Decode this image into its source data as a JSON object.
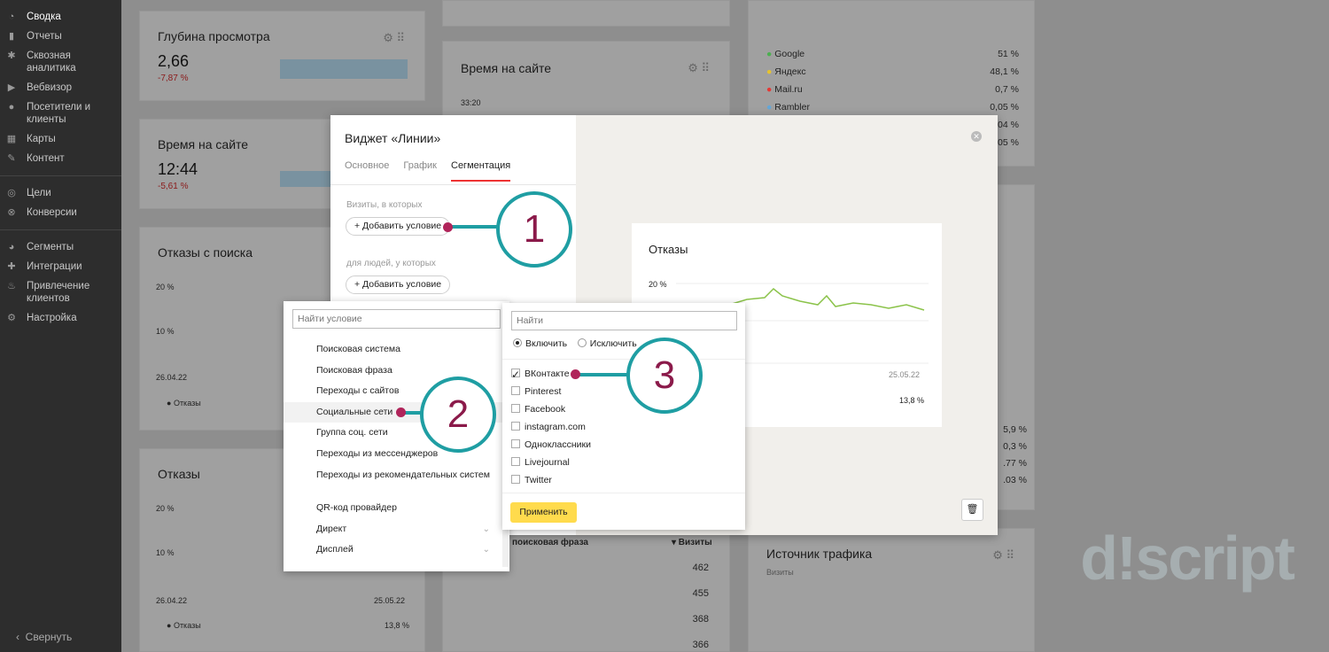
{
  "sidebar": {
    "items": [
      {
        "label": "Сводка",
        "icon": "dashboard-icon"
      },
      {
        "label": "Отчеты",
        "icon": "bar-chart-icon"
      },
      {
        "label": "Сквозная аналитика",
        "icon": "snowflake-icon"
      },
      {
        "label": "Вебвизор",
        "icon": "play-icon"
      },
      {
        "label": "Посетители и клиенты",
        "icon": "user-icon"
      },
      {
        "label": "Карты",
        "icon": "map-icon"
      },
      {
        "label": "Контент",
        "icon": "pencil-icon"
      },
      {
        "label": "Цели",
        "icon": "target-icon"
      },
      {
        "label": "Конверсии",
        "icon": "conversion-icon"
      },
      {
        "label": "Сегменты",
        "icon": "pie-icon"
      },
      {
        "label": "Интеграции",
        "icon": "puzzle-icon"
      },
      {
        "label": "Привлечение клиентов",
        "icon": "flame-icon"
      },
      {
        "label": "Настройка",
        "icon": "gear-icon"
      }
    ],
    "collapse_label": "Свернуть"
  },
  "cards": {
    "depth": {
      "title": "Глубина просмотра",
      "value": "2,66",
      "delta": "-7,87 %"
    },
    "time": {
      "title": "Время на сайте",
      "value": "12:44",
      "delta": "-5,61 %"
    },
    "bounces_search": {
      "title": "Отказы с поиска",
      "y20": "20 %",
      "y10": "10 %",
      "date_start": "26.04.22",
      "legend": "Отказы"
    },
    "bounces": {
      "title": "Отказы",
      "y20": "20 %",
      "y10": "10 %",
      "date_start": "26.04.22",
      "date_end": "25.05.22",
      "legend": "Отказы",
      "total": "13,8 %"
    },
    "time_mid": {
      "title": "Время на сайте",
      "y": "33:20"
    },
    "sources": [
      {
        "name": "Google",
        "value": "51 %",
        "color": "#4caf50"
      },
      {
        "name": "Яндекс",
        "value": "48,1 %",
        "color": "#e6c32e"
      },
      {
        "name": "Mail.ru",
        "value": "0,7 %",
        "color": "#e53935"
      },
      {
        "name": "Rambler",
        "value": "0,05 %",
        "color": "#64a7d8"
      }
    ],
    "sources_partial": [
      ".04 %",
      ".05 %"
    ],
    "side_values": [
      "5,9 %",
      "0,3 %",
      ".77 %",
      ".03 %"
    ],
    "traffic": {
      "title": "Источник трафика",
      "subtitle": "Визиты"
    },
    "table": {
      "col1": "поисковая фраза",
      "col2": "▾ Визиты",
      "rows": [
        "462",
        "455",
        "368",
        "366"
      ]
    }
  },
  "modal": {
    "title": "Виджет «Линии»",
    "tabs": [
      "Основное",
      "График",
      "Сегментация"
    ],
    "visits_label": "Визиты, в которых",
    "people_label": "для людей, у которых",
    "add_condition": "+ Добавить условие",
    "preview": {
      "title": "Отказы",
      "y20": "20 %",
      "date_end": "25.05.22",
      "total": "13,8 %"
    }
  },
  "conditions": {
    "placeholder": "Найти условие",
    "items": [
      {
        "label": "Поисковая система"
      },
      {
        "label": "Поисковая фраза"
      },
      {
        "label": "Переходы с сайтов"
      },
      {
        "label": "Социальные сети",
        "selected": true
      },
      {
        "label": "Группа соц. сети"
      },
      {
        "label": "Переходы из мессенджеров"
      },
      {
        "label": "Переходы из рекомендательных систем",
        "two": true
      },
      {
        "label": "QR-код провайдер"
      },
      {
        "label": "Директ",
        "chev": true
      },
      {
        "label": "Дисплей",
        "chev": true
      }
    ]
  },
  "social": {
    "placeholder": "Найти",
    "include": "Включить",
    "exclude": "Исключить",
    "items": [
      {
        "label": "ВКонтакте",
        "checked": true
      },
      {
        "label": "Pinterest",
        "checked": false
      },
      {
        "label": "Facebook",
        "checked": false
      },
      {
        "label": "instagram.com",
        "checked": false
      },
      {
        "label": "Одноклассники",
        "checked": false
      },
      {
        "label": "Livejournal",
        "checked": false
      },
      {
        "label": "Twitter",
        "checked": false
      }
    ],
    "apply": "Применить"
  },
  "callouts": [
    "1",
    "2",
    "3"
  ],
  "watermark": "d!script"
}
